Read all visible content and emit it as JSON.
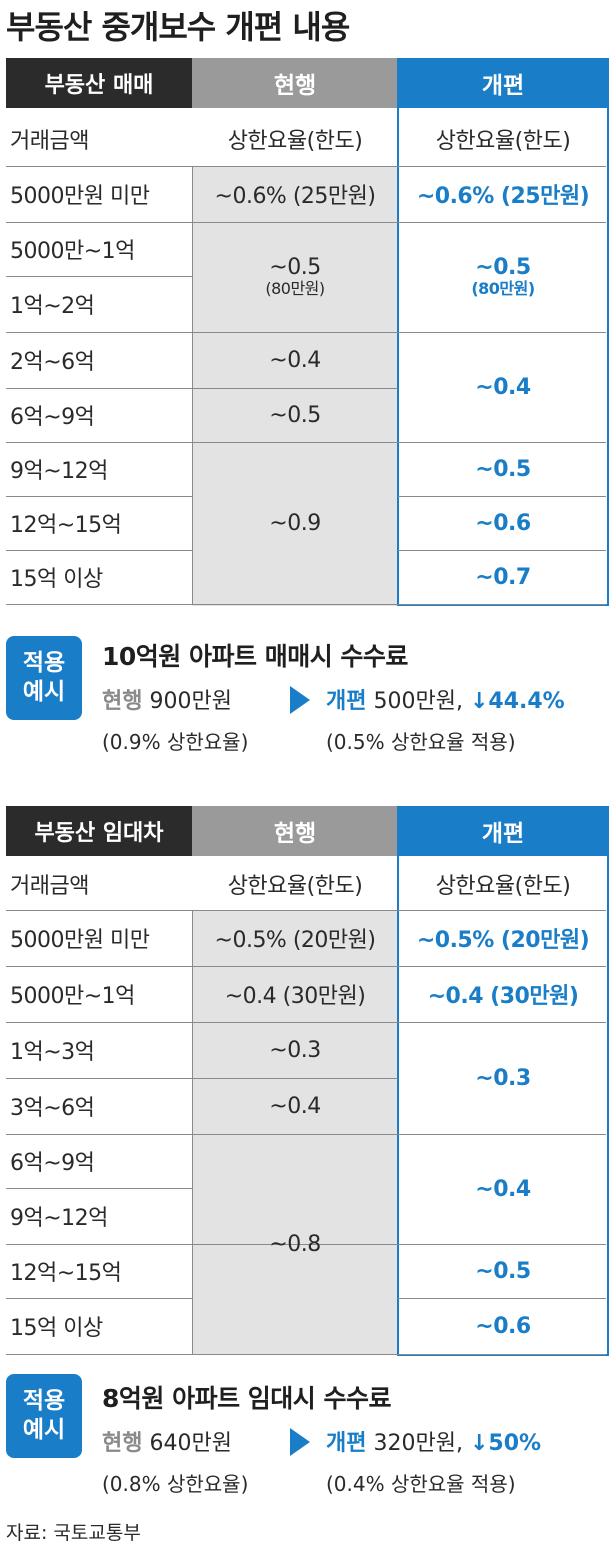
{
  "title": "부동산 중개보수 개편 내용",
  "sale": {
    "headers": {
      "category": "부동산 매매",
      "current": "현행",
      "reform": "개편"
    },
    "subheaders": {
      "amount": "거래금액",
      "current": "상한요율(한도)",
      "reform": "상한요율(한도)"
    },
    "amounts": [
      "5000만원 미만",
      "5000만~1억",
      "1억~2억",
      "2억~6억",
      "6억~9억",
      "9억~12억",
      "12억~15억",
      "15억 이상"
    ],
    "current": {
      "r1": "~0.6% (25만원)",
      "r2a": "~0.5",
      "r2b": "(80만원)",
      "r3": "~0.4",
      "r4": "~0.5",
      "r5": "~0.9"
    },
    "reform": {
      "r1": "~0.6% (25만원)",
      "r2a": "~0.5",
      "r2b": "(80만원)",
      "r3": "~0.4",
      "r4": "~0.5",
      "r5": "~0.6",
      "r6": "~0.7"
    }
  },
  "sale_example": {
    "badge_line1": "적용",
    "badge_line2": "예시",
    "title": "10억원 아파트 매매시 수수료",
    "current_label": "현행",
    "current_value": "900만원",
    "current_note": "(0.9% 상한요율)",
    "reform_label": "개편",
    "reform_value": "500만원,",
    "change": "↓44.4%",
    "reform_note": "(0.5% 상한요율 적용)"
  },
  "lease": {
    "headers": {
      "category": "부동산 임대차",
      "current": "현행",
      "reform": "개편"
    },
    "subheaders": {
      "amount": "거래금액",
      "current": "상한요율(한도)",
      "reform": "상한요율(한도)"
    },
    "amounts": [
      "5000만원 미만",
      "5000만~1억",
      "1억~3억",
      "3억~6억",
      "6억~9억",
      "9억~12억",
      "12억~15억",
      "15억 이상"
    ],
    "current": {
      "r1": "~0.5% (20만원)",
      "r2": "~0.4 (30만원)",
      "r3": "~0.3",
      "r4": "~0.4",
      "r5": "~0.8"
    },
    "reform": {
      "r1": "~0.5% (20만원)",
      "r2": "~0.4 (30만원)",
      "r3": "~0.3",
      "r4": "~0.4",
      "r5": "~0.5",
      "r6": "~0.6"
    }
  },
  "lease_example": {
    "badge_line1": "적용",
    "badge_line2": "예시",
    "title": "8억원 아파트 임대시 수수료",
    "current_label": "현행",
    "current_value": "640만원",
    "current_note": "(0.8% 상한요율)",
    "reform_label": "개편",
    "reform_value": "320만원,",
    "change": "↓50%",
    "reform_note": "(0.4% 상한요율 적용)"
  },
  "source": "자료: 국토교통부",
  "colors": {
    "accent": "#1a7dc8",
    "header_dark": "#2b2b2b",
    "header_gray": "#9a9a9a",
    "current_bg": "#e3e3e3"
  }
}
